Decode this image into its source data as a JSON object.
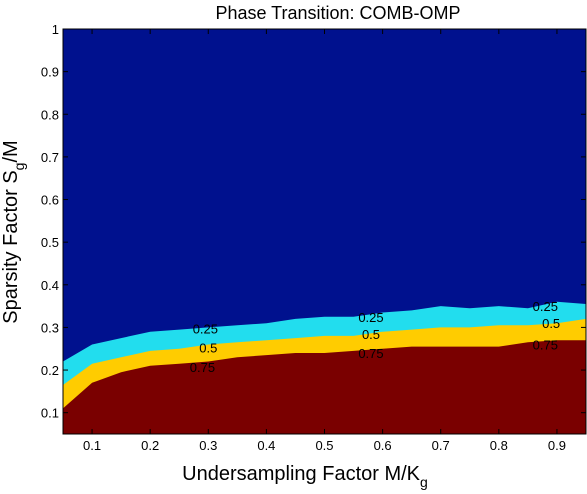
{
  "chart_data": {
    "type": "contour",
    "title": "Phase Transition: COMB-OMP",
    "xlabel_main": "Undersampling Factor M/K",
    "xlabel_sub": "g",
    "ylabel_main": "Sparsity Factor S",
    "ylabel_sub": "g",
    "ylabel_tail": "/M",
    "xlim": [
      0.05,
      0.95
    ],
    "ylim": [
      0.05,
      1.0
    ],
    "x_ticks": [
      "0.1",
      "0.2",
      "0.3",
      "0.4",
      "0.5",
      "0.6",
      "0.7",
      "0.8",
      "0.9"
    ],
    "y_ticks": [
      "0.1",
      "0.2",
      "0.3",
      "0.4",
      "0.5",
      "0.6",
      "0.7",
      "0.8",
      "0.9",
      "1"
    ],
    "levels": [
      {
        "name": "0.75",
        "color": "#7a0000"
      },
      {
        "name": "0.5",
        "color": "#ffcc00"
      },
      {
        "name": "0.25",
        "color": "#22ddee"
      },
      {
        "name": "0",
        "color": "#00118e"
      }
    ],
    "contours": [
      {
        "level": "0.75",
        "x": [
          0.05,
          0.1,
          0.15,
          0.2,
          0.25,
          0.3,
          0.35,
          0.4,
          0.45,
          0.5,
          0.55,
          0.6,
          0.65,
          0.7,
          0.75,
          0.8,
          0.85,
          0.9,
          0.95
        ],
        "y": [
          0.11,
          0.17,
          0.195,
          0.21,
          0.215,
          0.22,
          0.23,
          0.235,
          0.24,
          0.24,
          0.245,
          0.25,
          0.255,
          0.255,
          0.255,
          0.255,
          0.265,
          0.27,
          0.27
        ]
      },
      {
        "level": "0.5",
        "x": [
          0.05,
          0.1,
          0.15,
          0.2,
          0.25,
          0.3,
          0.35,
          0.4,
          0.45,
          0.5,
          0.55,
          0.6,
          0.65,
          0.7,
          0.75,
          0.8,
          0.85,
          0.9,
          0.95
        ],
        "y": [
          0.165,
          0.215,
          0.23,
          0.245,
          0.25,
          0.26,
          0.265,
          0.27,
          0.275,
          0.28,
          0.28,
          0.29,
          0.295,
          0.3,
          0.3,
          0.305,
          0.305,
          0.31,
          0.32
        ]
      },
      {
        "level": "0.25",
        "x": [
          0.05,
          0.1,
          0.15,
          0.2,
          0.25,
          0.3,
          0.35,
          0.4,
          0.45,
          0.5,
          0.55,
          0.6,
          0.65,
          0.7,
          0.75,
          0.8,
          0.85,
          0.9,
          0.95
        ],
        "y": [
          0.22,
          0.26,
          0.275,
          0.29,
          0.295,
          0.3,
          0.305,
          0.31,
          0.32,
          0.325,
          0.325,
          0.335,
          0.34,
          0.35,
          0.345,
          0.35,
          0.345,
          0.36,
          0.355
        ]
      }
    ],
    "contour_labels": [
      {
        "text": "0.25",
        "x": 0.295,
        "y": 0.298
      },
      {
        "text": "0.5",
        "x": 0.3,
        "y": 0.253
      },
      {
        "text": "0.75",
        "x": 0.29,
        "y": 0.207
      },
      {
        "text": "0.25",
        "x": 0.58,
        "y": 0.325
      },
      {
        "text": "0.5",
        "x": 0.58,
        "y": 0.285
      },
      {
        "text": "0.75",
        "x": 0.58,
        "y": 0.24
      },
      {
        "text": "0.25",
        "x": 0.88,
        "y": 0.35
      },
      {
        "text": "0.5",
        "x": 0.89,
        "y": 0.31
      },
      {
        "text": "0.75",
        "x": 0.88,
        "y": 0.26
      }
    ]
  }
}
